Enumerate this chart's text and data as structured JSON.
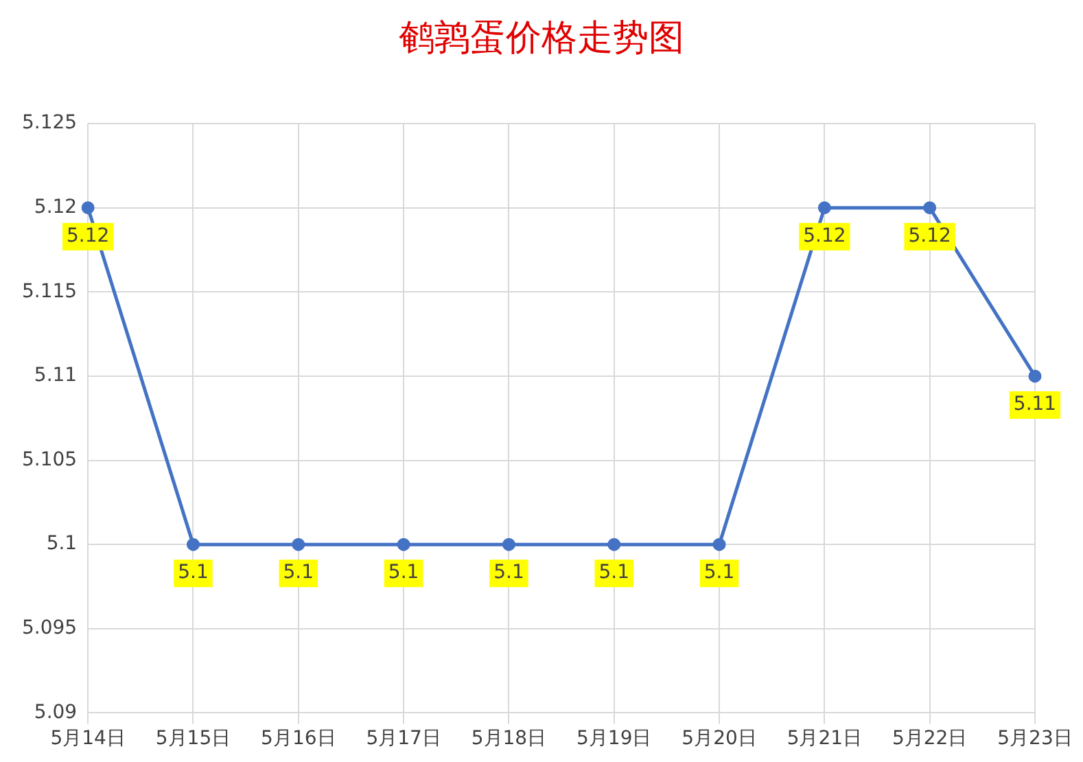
{
  "chart_data": {
    "type": "line",
    "title": "鹌鹑蛋价格走势图",
    "categories": [
      "5月14日",
      "5月15日",
      "5月16日",
      "5月17日",
      "5月18日",
      "5月19日",
      "5月20日",
      "5月21日",
      "5月22日",
      "5月23日"
    ],
    "series": [
      {
        "color": "#4472c4",
        "values": [
          5.12,
          5.1,
          5.1,
          5.1,
          5.1,
          5.1,
          5.1,
          5.12,
          5.12,
          5.11
        ]
      }
    ],
    "ylim": [
      5.09,
      5.125
    ],
    "yticks": [
      5.09,
      5.095,
      5.1,
      5.105,
      5.11,
      5.115,
      5.12,
      5.125
    ],
    "grid": true,
    "legend": false,
    "marker": "circle",
    "line_style": "solid",
    "data_labels": true
  }
}
